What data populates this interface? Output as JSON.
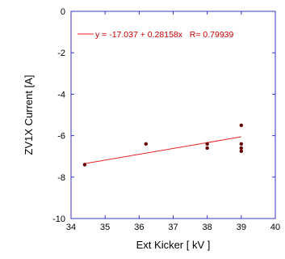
{
  "chart_data": {
    "type": "scatter",
    "xlabel": "Ext Kicker [ kV ]",
    "ylabel": "ZV1X Current [A]",
    "xlim": [
      34,
      40
    ],
    "ylim": [
      -10,
      0
    ],
    "x_ticks": [
      34,
      35,
      36,
      37,
      38,
      39,
      40
    ],
    "y_ticks": [
      0,
      -2,
      -4,
      -6,
      -8,
      -10
    ],
    "grid": false,
    "legend_position": "top-left",
    "points": [
      {
        "x": 34.4,
        "y": -7.4
      },
      {
        "x": 36.2,
        "y": -6.4
      },
      {
        "x": 38.0,
        "y": -6.4
      },
      {
        "x": 38.0,
        "y": -6.6
      },
      {
        "x": 39.0,
        "y": -5.5
      },
      {
        "x": 39.0,
        "y": -6.4
      },
      {
        "x": 39.0,
        "y": -6.6
      },
      {
        "x": 39.0,
        "y": -6.75
      }
    ],
    "fit": {
      "intercept": -17.037,
      "slope": 0.28158,
      "x_range": [
        34.4,
        39.0
      ],
      "label": "y = -17.037 + 0.28158x   R= 0.79939"
    },
    "colors": {
      "axes": "#3333cc",
      "points": "#660000",
      "fit_line": "#ee2222",
      "legend_text": "#cc0000"
    }
  }
}
